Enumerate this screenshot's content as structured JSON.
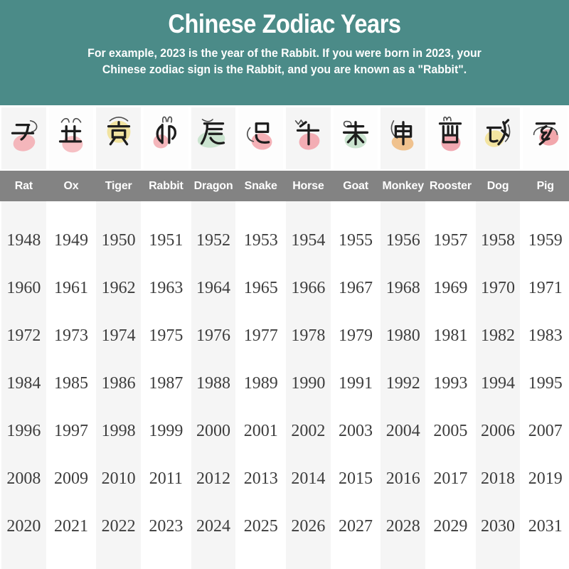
{
  "header": {
    "title": "Chinese Zodiac Years",
    "subtitle_line1": "For example, 2023 is the year of the Rabbit. If you were born in 2023, your",
    "subtitle_line2": "Chinese zodiac sign is the Rabbit, and you are known as a \"Rabbit\".",
    "background_color": "#4b8b88",
    "text_color": "#ffffff"
  },
  "zodiac": {
    "signs": [
      {
        "name": "Rat",
        "branch_glyph": "子",
        "blob_color": "#f4b6bb"
      },
      {
        "name": "Ox",
        "branch_glyph": "丑",
        "blob_color": "#f6c0c4"
      },
      {
        "name": "Tiger",
        "branch_glyph": "寅",
        "blob_color": "#f1e3a0"
      },
      {
        "name": "Rabbit",
        "branch_glyph": "卯",
        "blob_color": "#f4b6bb"
      },
      {
        "name": "Dragon",
        "branch_glyph": "辰",
        "blob_color": "#cbe4d0"
      },
      {
        "name": "Snake",
        "branch_glyph": "巳",
        "blob_color": "#f4b0b6"
      },
      {
        "name": "Horse",
        "branch_glyph": "午",
        "blob_color": "#f3adb4"
      },
      {
        "name": "Goat",
        "branch_glyph": "未",
        "blob_color": "#cbe4d0"
      },
      {
        "name": "Monkey",
        "branch_glyph": "申",
        "blob_color": "#f0c28e"
      },
      {
        "name": "Rooster",
        "branch_glyph": "酉",
        "blob_color": "#f2a8b1"
      },
      {
        "name": "Dog",
        "branch_glyph": "戌",
        "blob_color": "#f3e4a1"
      },
      {
        "name": "Pig",
        "branch_glyph": "亥",
        "blob_color": "#f2a7ac"
      }
    ],
    "year_rows": [
      [
        1948,
        1949,
        1950,
        1951,
        1952,
        1953,
        1954,
        1955,
        1956,
        1957,
        1958,
        1959
      ],
      [
        1960,
        1961,
        1962,
        1963,
        1964,
        1965,
        1966,
        1967,
        1968,
        1969,
        1970,
        1971
      ],
      [
        1972,
        1973,
        1974,
        1975,
        1976,
        1977,
        1978,
        1979,
        1980,
        1981,
        1982,
        1983
      ],
      [
        1984,
        1985,
        1986,
        1987,
        1988,
        1989,
        1990,
        1991,
        1992,
        1993,
        1994,
        1995
      ],
      [
        1996,
        1997,
        1998,
        1999,
        2000,
        2001,
        2002,
        2003,
        2004,
        2005,
        2006,
        2007
      ],
      [
        2008,
        2009,
        2010,
        2011,
        2012,
        2013,
        2014,
        2015,
        2016,
        2017,
        2018,
        2019
      ],
      [
        2020,
        2021,
        2022,
        2023,
        2024,
        2025,
        2026,
        2027,
        2028,
        2029,
        2030,
        2031
      ]
    ]
  },
  "colors": {
    "name_bar_background": "#838383",
    "column_stripe": "#f5f5f5",
    "year_text": "#3d3d3d",
    "ink_stroke": "#1d1d1d"
  }
}
